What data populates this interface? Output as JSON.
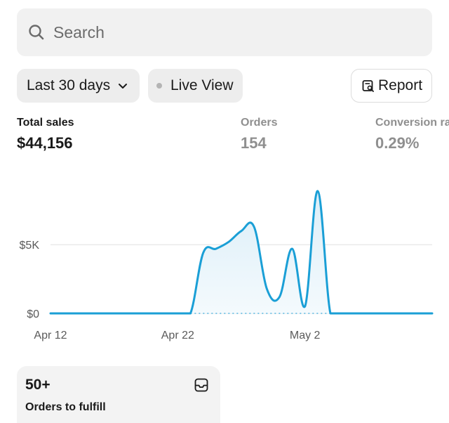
{
  "search": {
    "placeholder": "Search",
    "icon": "search-icon"
  },
  "filters": {
    "date_range": "Last 30 days",
    "live_view": "Live View",
    "report": "Report"
  },
  "metrics": [
    {
      "label": "Total sales",
      "value": "$44,156"
    },
    {
      "label": "Orders",
      "value": "154"
    },
    {
      "label": "Conversion rate",
      "value": "0.29%"
    }
  ],
  "chart_data": {
    "type": "line",
    "x_ticks": [
      "Apr 12",
      "Apr 22",
      "May 2"
    ],
    "y_ticks": [
      "$5K",
      "$0"
    ],
    "ylim": [
      0,
      9000
    ],
    "x": [
      "Apr 12",
      "Apr 13",
      "Apr 14",
      "Apr 15",
      "Apr 16",
      "Apr 17",
      "Apr 18",
      "Apr 19",
      "Apr 20",
      "Apr 21",
      "Apr 22",
      "Apr 23",
      "Apr 24",
      "Apr 25",
      "Apr 26",
      "Apr 27",
      "Apr 28",
      "Apr 29",
      "Apr 30",
      "May 1",
      "May 2",
      "May 3",
      "May 4",
      "May 5",
      "May 6",
      "May 7",
      "May 8",
      "May 9",
      "May 10",
      "May 11",
      "May 12"
    ],
    "series": [
      {
        "color": "#1a9fd6",
        "values": [
          0,
          0,
          0,
          0,
          0,
          0,
          0,
          0,
          0,
          0,
          0,
          0,
          4400,
          4700,
          5200,
          6000,
          6300,
          1800,
          1200,
          4700,
          500,
          8900,
          0,
          0,
          0,
          0,
          0,
          0,
          0,
          0,
          0
        ]
      }
    ],
    "grid": true,
    "baseline_dotted": true
  },
  "card": {
    "value": "50+",
    "label": "Orders to fulfill",
    "icon": "inbox-icon"
  }
}
